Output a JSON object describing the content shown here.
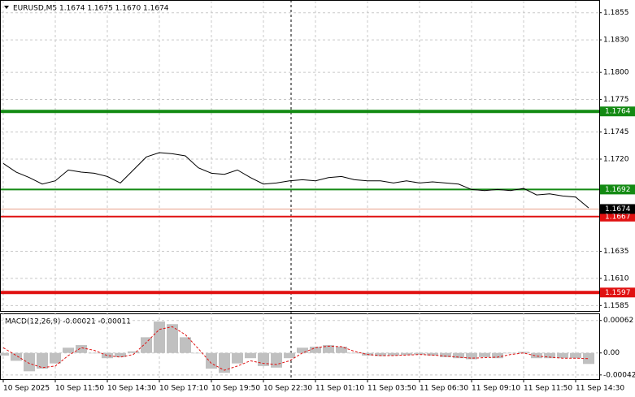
{
  "chart_data": [
    {
      "type": "line",
      "title": "EURUSD,M5  1.1674 1.1675 1.1670 1.1674",
      "color": "#000000",
      "grid": true,
      "categories": [
        "10 Sep 2025",
        null,
        null,
        null,
        "10 Sep 11:50",
        null,
        null,
        null,
        "10 Sep 14:30",
        null,
        null,
        null,
        "10 Sep 17:10",
        null,
        null,
        null,
        "10 Sep 19:50",
        null,
        null,
        null,
        "10 Sep 22:30",
        null,
        null,
        null,
        "11 Sep 01:10",
        null,
        null,
        null,
        "11 Sep 03:50",
        null,
        null,
        null,
        "11 Sep 06:30",
        null,
        null,
        null,
        "11 Sep 09:10",
        null,
        null,
        null,
        "11 Sep 11:50",
        null,
        null,
        null,
        "11 Sep 14:30",
        null
      ],
      "values": [
        1.1716,
        1.1708,
        1.1703,
        1.1697,
        1.17,
        1.171,
        1.1708,
        1.1707,
        1.1704,
        1.1698,
        1.171,
        1.1722,
        1.1726,
        1.1725,
        1.1723,
        1.1712,
        1.1707,
        1.1706,
        1.171,
        1.1703,
        1.1697,
        1.1698,
        1.17,
        1.1701,
        1.17,
        1.1703,
        1.1704,
        1.1701,
        1.17,
        1.17,
        1.1698,
        1.17,
        1.1698,
        1.1699,
        1.1698,
        1.1697,
        1.1692,
        1.1691,
        1.1692,
        1.1691,
        1.1693,
        1.1687,
        1.1688,
        1.1686,
        1.1685,
        1.1675
      ],
      "ylim": [
        1.158,
        1.1866
      ],
      "yticks": [
        {
          "value": 1.1855,
          "label": "1.1855"
        },
        {
          "value": 1.183,
          "label": "1.1830"
        },
        {
          "value": 1.18,
          "label": "1.1800"
        },
        {
          "value": 1.1775,
          "label": "1.1775"
        },
        {
          "value": 1.1745,
          "label": "1.1745"
        },
        {
          "value": 1.172,
          "label": "1.1720"
        },
        {
          "value": 1.1635,
          "label": "1.1635"
        },
        {
          "value": 1.161,
          "label": "1.1610"
        },
        {
          "value": 1.1585,
          "label": "1.1585"
        }
      ],
      "levels": [
        {
          "value": 1.1764,
          "color": "#138a13",
          "width": 4
        },
        {
          "value": 1.1692,
          "color": "#138a13",
          "width": 2
        },
        {
          "value": 1.1667,
          "color": "#e01010",
          "width": 2
        },
        {
          "value": 1.1597,
          "color": "#e01010",
          "width": 4
        }
      ],
      "last_price": {
        "value": 1.1674,
        "color": "#000000"
      }
    },
    {
      "type": "macd",
      "title": "MACD(12,26,9) -0.00021 -0.00011",
      "series": [
        {
          "color": "#c0c0c0",
          "values": [
            -5e-05,
            -0.00015,
            -0.00035,
            -0.0003,
            -0.0002,
            0.0001,
            0.00015,
            0,
            -0.0001,
            -8e-05,
            3e-05,
            0.0003,
            0.0006,
            0.00055,
            0.0003,
            0,
            -0.0003,
            -0.00038,
            -0.0002,
            -0.0001,
            -0.00025,
            -0.00028,
            -0.0001,
            0.0001,
            0.00012,
            0.00015,
            0.00012,
            0,
            -5e-05,
            -6e-05,
            -5e-05,
            -4e-05,
            -3e-05,
            -5e-05,
            -8e-05,
            -0.0001,
            -0.00012,
            -8e-05,
            -0.0001,
            0,
            2e-05,
            -0.0001,
            -0.0001,
            -0.0001,
            -0.0001,
            -0.00021
          ]
        },
        {
          "color": "#e01010",
          "values": [
            0.0001,
            -5e-05,
            -0.0002,
            -0.00028,
            -0.00025,
            -5e-05,
            0.0001,
            5e-05,
            -5e-05,
            -8e-05,
            -3e-05,
            0.0002,
            0.00045,
            0.0005,
            0.00035,
            8e-05,
            -0.0002,
            -0.00033,
            -0.00025,
            -0.00015,
            -0.0002,
            -0.00022,
            -0.00015,
            0,
            0.0001,
            0.00013,
            0.00012,
            3e-05,
            -3e-05,
            -5e-05,
            -5e-05,
            -4e-05,
            -3e-05,
            -4e-05,
            -6e-05,
            -8e-05,
            -0.0001,
            -9e-05,
            -8e-05,
            -3e-05,
            0,
            -6e-05,
            -8e-05,
            -0.0001,
            -0.0001,
            -0.00011
          ]
        }
      ],
      "ylim": [
        -0.0005,
        0.00074
      ],
      "yticks": [
        0.00062,
        {
          "value": 0,
          "label": "0.00"
        },
        -0.00042
      ]
    }
  ]
}
